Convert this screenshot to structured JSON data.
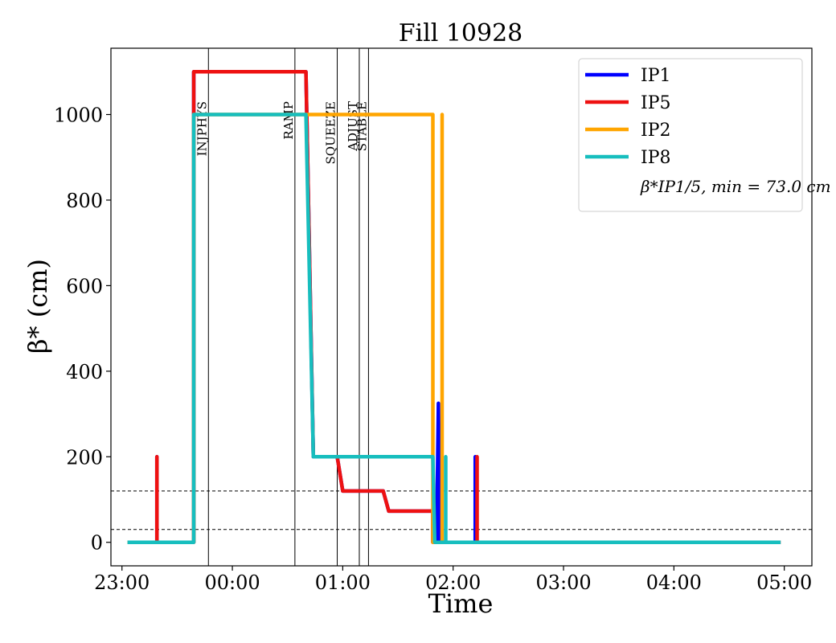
{
  "chart_data": {
    "type": "line",
    "title": "Fill 10928",
    "xlabel": "Time",
    "ylabel": "β* (cm)",
    "x_ticks": [
      "23:00",
      "00:00",
      "01:00",
      "02:00",
      "03:00",
      "04:00",
      "05:00"
    ],
    "y_ticks": [
      "0",
      "200",
      "400",
      "600",
      "800",
      "1000"
    ],
    "x_range": [
      "22:54",
      "05:15"
    ],
    "y_range": [
      -55,
      1155
    ],
    "grid": false,
    "legend_position": "top-right",
    "legend_note": "β*IP1/5, min = 73.0 cm",
    "phase_markers": [
      {
        "label": "INJPHYS",
        "time": "23:47"
      },
      {
        "label": "RAMP",
        "time": "00:34"
      },
      {
        "label": "SQUEEZE",
        "time": "00:57"
      },
      {
        "label": "ADJUST",
        "time": "01:09"
      },
      {
        "label": "STABLE",
        "time": "01:14"
      }
    ],
    "reference_lines": [
      {
        "value": 120,
        "style": "dashed"
      },
      {
        "value": 30,
        "style": "dashed"
      }
    ],
    "series": [
      {
        "name": "IP1",
        "color": "#0000ff",
        "points": [
          [
            "23:03",
            0
          ],
          [
            "23:19",
            0
          ],
          [
            "23:19",
            200
          ],
          [
            "23:19",
            0
          ],
          [
            "23:39",
            0
          ],
          [
            "23:39",
            1100
          ],
          [
            "00:40",
            1100
          ],
          [
            "00:44",
            200
          ],
          [
            "00:57",
            200
          ],
          [
            "01:00",
            120
          ],
          [
            "01:22",
            120
          ],
          [
            "01:25",
            73
          ],
          [
            "01:49",
            73
          ],
          [
            "01:49",
            0
          ],
          [
            "01:51",
            0
          ],
          [
            "01:52",
            325
          ],
          [
            "01:53",
            0
          ],
          [
            "02:12",
            0
          ],
          [
            "02:12",
            200
          ],
          [
            "02:12",
            0
          ],
          [
            "04:58",
            0
          ]
        ]
      },
      {
        "name": "IP5",
        "color": "#ee1111",
        "points": [
          [
            "23:03",
            0
          ],
          [
            "23:19",
            0
          ],
          [
            "23:19",
            200
          ],
          [
            "23:19",
            0
          ],
          [
            "23:39",
            0
          ],
          [
            "23:39",
            1100
          ],
          [
            "00:40",
            1100
          ],
          [
            "00:44",
            200
          ],
          [
            "00:57",
            200
          ],
          [
            "01:00",
            120
          ],
          [
            "01:22",
            120
          ],
          [
            "01:25",
            73
          ],
          [
            "01:49",
            73
          ],
          [
            "01:49",
            0
          ],
          [
            "02:13",
            0
          ],
          [
            "02:13",
            200
          ],
          [
            "02:13",
            0
          ],
          [
            "04:58",
            0
          ]
        ]
      },
      {
        "name": "IP2",
        "color": "#ffa500",
        "points": [
          [
            "23:03",
            0
          ],
          [
            "23:39",
            0
          ],
          [
            "23:39",
            1000
          ],
          [
            "01:49",
            1000
          ],
          [
            "01:49",
            0
          ],
          [
            "01:54",
            0
          ],
          [
            "01:54",
            1000
          ],
          [
            "01:54",
            0
          ],
          [
            "04:58",
            0
          ]
        ]
      },
      {
        "name": "IP8",
        "color": "#17bebe",
        "points": [
          [
            "23:03",
            0
          ],
          [
            "23:39",
            0
          ],
          [
            "23:39",
            1000
          ],
          [
            "00:40",
            1000
          ],
          [
            "00:44",
            200
          ],
          [
            "01:49",
            200
          ],
          [
            "01:50",
            0
          ],
          [
            "01:56",
            0
          ],
          [
            "01:56",
            200
          ],
          [
            "01:56",
            0
          ],
          [
            "04:58",
            0
          ]
        ]
      }
    ]
  }
}
